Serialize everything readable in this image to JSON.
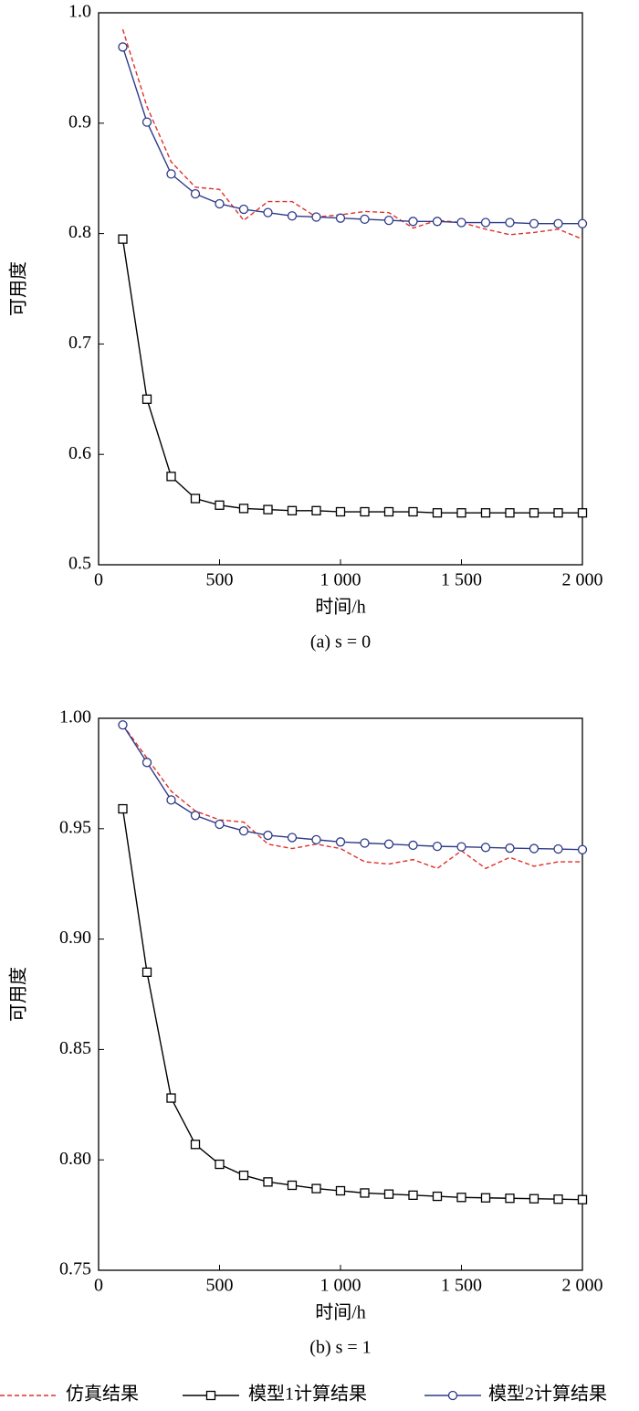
{
  "chart_data": [
    {
      "type": "line",
      "caption": "(a)  s = 0",
      "xlabel": "时间/h",
      "ylabel": "可用度",
      "x": [
        100,
        200,
        300,
        400,
        500,
        600,
        700,
        800,
        900,
        1000,
        1100,
        1200,
        1300,
        1400,
        1500,
        1600,
        1700,
        1800,
        1900,
        2000
      ],
      "xlim": [
        0,
        2000
      ],
      "xticks": [
        0,
        500,
        {
          "value": 1000,
          "label": "1 000"
        },
        {
          "value": 1500,
          "label": "1 500"
        },
        {
          "value": 2000,
          "label": "2 000"
        }
      ],
      "ylim": [
        0.5,
        1.0
      ],
      "yticks": [
        0.5,
        0.6,
        0.7,
        0.8,
        0.9,
        {
          "value": 1.0,
          "label": "1.0"
        }
      ],
      "series": [
        {
          "name": "仿真结果",
          "color": "#e0302a",
          "dash": true,
          "marker": null,
          "values": [
            0.985,
            0.915,
            0.865,
            0.842,
            0.84,
            0.812,
            0.829,
            0.829,
            0.815,
            0.817,
            0.82,
            0.819,
            0.805,
            0.812,
            0.81,
            0.804,
            0.799,
            0.801,
            0.804,
            0.795
          ]
        },
        {
          "name": "模型1计算结果",
          "color": "#000000",
          "dash": false,
          "marker": "square",
          "values": [
            0.795,
            0.65,
            0.58,
            0.56,
            0.554,
            0.551,
            0.55,
            0.549,
            0.549,
            0.548,
            0.548,
            0.548,
            0.548,
            0.547,
            0.547,
            0.547,
            0.547,
            0.547,
            0.547,
            0.547
          ]
        },
        {
          "name": "模型2计算结果",
          "color": "#2e3a87",
          "dash": false,
          "marker": "circle",
          "values": [
            0.969,
            0.901,
            0.854,
            0.836,
            0.827,
            0.822,
            0.819,
            0.816,
            0.815,
            0.814,
            0.813,
            0.812,
            0.811,
            0.811,
            0.81,
            0.81,
            0.81,
            0.809,
            0.809,
            0.809
          ]
        }
      ]
    },
    {
      "type": "line",
      "caption": "(b)  s = 1",
      "xlabel": "时间/h",
      "ylabel": "可用度",
      "x": [
        100,
        200,
        300,
        400,
        500,
        600,
        700,
        800,
        900,
        1000,
        1100,
        1200,
        1300,
        1400,
        1500,
        1600,
        1700,
        1800,
        1900,
        2000
      ],
      "xlim": [
        0,
        2000
      ],
      "xticks": [
        0,
        500,
        {
          "value": 1000,
          "label": "1 000"
        },
        {
          "value": 1500,
          "label": "1 500"
        },
        {
          "value": 2000,
          "label": "2 000"
        }
      ],
      "ylim": [
        0.75,
        1.0
      ],
      "yticks": [
        0.75,
        {
          "value": 0.8,
          "label": "0.80"
        },
        0.85,
        {
          "value": 0.9,
          "label": "0.90"
        },
        0.95,
        {
          "value": 1.0,
          "label": "1.00"
        }
      ],
      "series": [
        {
          "color": "#e0302a",
          "dash": true,
          "marker": null,
          "values": [
            0.997,
            0.982,
            0.967,
            0.958,
            0.954,
            0.953,
            0.943,
            0.941,
            0.943,
            0.941,
            0.935,
            0.934,
            0.936,
            0.932,
            0.94,
            0.932,
            0.937,
            0.933,
            0.935,
            0.935
          ]
        },
        {
          "color": "#000000",
          "dash": false,
          "marker": "square",
          "values": [
            0.959,
            0.885,
            0.828,
            0.807,
            0.798,
            0.793,
            0.79,
            0.7885,
            0.787,
            0.786,
            0.785,
            0.7845,
            0.784,
            0.7835,
            0.783,
            0.7828,
            0.7826,
            0.7824,
            0.7822,
            0.782
          ]
        },
        {
          "color": "#2e3a87",
          "dash": false,
          "marker": "circle",
          "values": [
            0.997,
            0.98,
            0.963,
            0.956,
            0.952,
            0.949,
            0.947,
            0.946,
            0.945,
            0.944,
            0.9435,
            0.943,
            0.9425,
            0.942,
            0.9418,
            0.9415,
            0.9412,
            0.941,
            0.9408,
            0.9405
          ]
        }
      ]
    }
  ]
}
